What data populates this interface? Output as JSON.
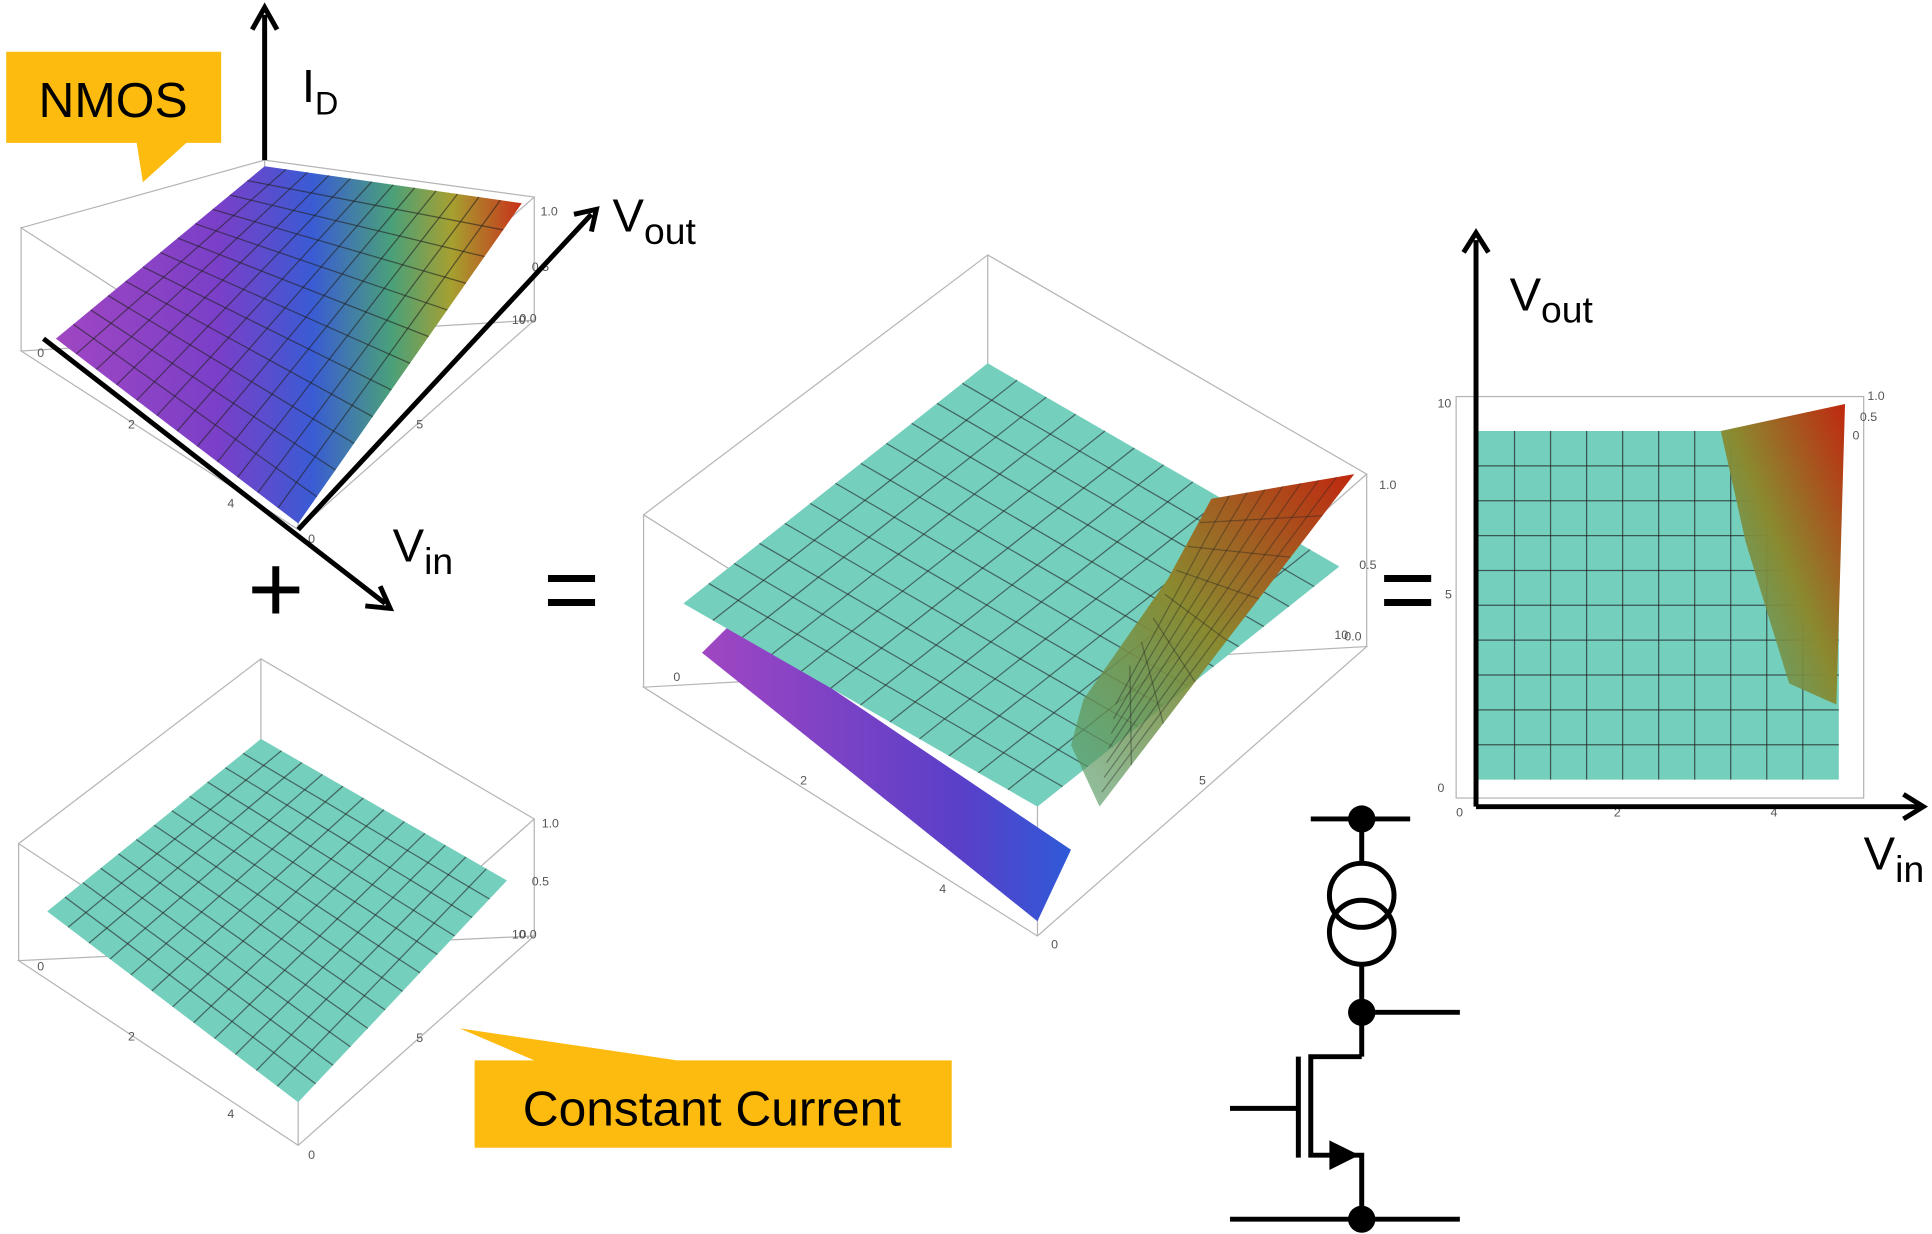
{
  "callouts": {
    "nmos": "NMOS",
    "constant_current": "Constant Current"
  },
  "operators": {
    "plus": "+",
    "equals_1": "=",
    "equals_2": "="
  },
  "axis_labels": {
    "id": {
      "main": "I",
      "sub": "D"
    },
    "vout_left": {
      "main": "V",
      "sub": "out"
    },
    "vin_left": {
      "main": "V",
      "sub": "in"
    },
    "vout_right": {
      "main": "V",
      "sub": "out"
    },
    "vin_right": {
      "main": "V",
      "sub": "in"
    }
  },
  "plot_nmos": {
    "z_ticks": [
      "1.0",
      "0.5",
      "0.0"
    ],
    "x_ticks": [
      "0",
      "2",
      "4"
    ],
    "y_ticks": [
      "0",
      "5",
      "10"
    ]
  },
  "plot_constant": {
    "z_ticks": [
      "1.0",
      "0.5",
      "0.0"
    ],
    "x_ticks": [
      "0",
      "2",
      "4"
    ],
    "y_ticks": [
      "0",
      "5",
      "10"
    ]
  },
  "plot_sum": {
    "z_ticks": [
      "1.0",
      "0.5",
      "0.0"
    ],
    "x_ticks": [
      "0",
      "2",
      "4"
    ],
    "y_ticks": [
      "0",
      "5",
      "10"
    ]
  },
  "plot_top": {
    "y_ticks": [
      "10",
      "5",
      "0"
    ],
    "x_ticks": [
      "0",
      "2",
      "4"
    ],
    "z_ticks": [
      "1.0",
      "0.5",
      "0"
    ]
  }
}
